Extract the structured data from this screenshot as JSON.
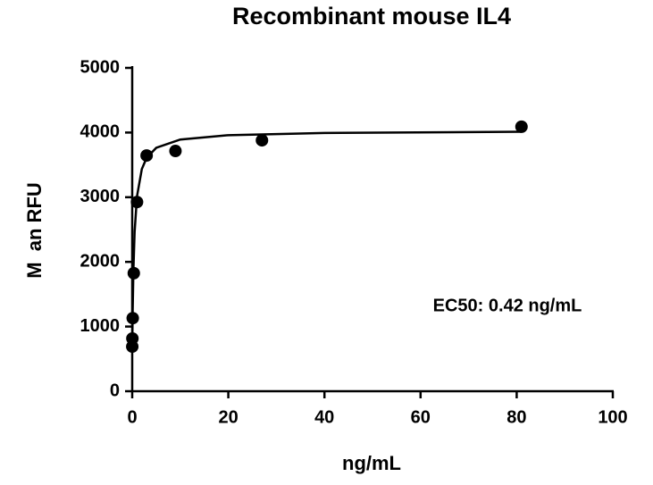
{
  "chart_data": {
    "type": "scatter",
    "title": "Recombinant mouse IL4",
    "x_label": "ng/mL",
    "y_label": "M  an RFU",
    "annotation": "EC50: 0.42 ng/mL",
    "xlim": [
      0,
      100
    ],
    "xticks": [
      0,
      20,
      40,
      60,
      80,
      100
    ],
    "ylim": [
      0,
      5000
    ],
    "yticks": [
      0,
      1000,
      2000,
      3000,
      4000,
      5000
    ],
    "series": [
      {
        "type": "scatter",
        "color": "#000000",
        "x": [
          81,
          27,
          9,
          3,
          1,
          0.33,
          0.11,
          0.037,
          0.012
        ],
        "values": [
          4090,
          3880,
          3715,
          3645,
          2925,
          1825,
          1130,
          815,
          690
        ]
      },
      {
        "type": "line",
        "color": "#000000",
        "x": [
          0,
          0.1,
          0.25,
          0.5,
          1,
          2,
          3,
          5,
          10,
          20,
          40,
          81
        ],
        "values": [
          650,
          1260,
          1880,
          2464,
          3015,
          3435,
          3609,
          3764,
          3892,
          3959,
          3994,
          4012
        ]
      }
    ]
  }
}
